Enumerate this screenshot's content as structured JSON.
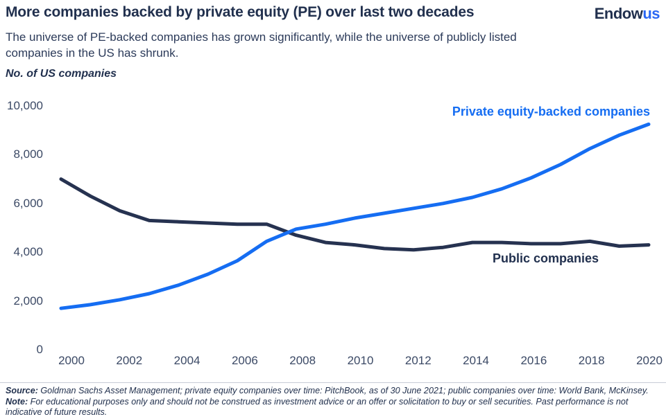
{
  "header": {
    "title": "More companies backed by private equity (PE) over last two decades",
    "logo": {
      "part1": "Endow",
      "part2": "us"
    }
  },
  "subtitle": {
    "line1": "The universe of PE-backed companies has grown significantly, while the universe of publicly listed",
    "line2": "companies in the US has shrunk."
  },
  "axis_unit_label": "No. of US companies",
  "chart_data": {
    "type": "line",
    "x": [
      2000,
      2001,
      2002,
      2003,
      2004,
      2005,
      2006,
      2007,
      2008,
      2009,
      2010,
      2011,
      2012,
      2013,
      2014,
      2015,
      2016,
      2017,
      2018,
      2019,
      2020
    ],
    "series": [
      {
        "name": "Public companies",
        "color": "#263250",
        "values": [
          7000,
          6300,
          5700,
          5300,
          5250,
          5200,
          5150,
          5150,
          4700,
          4400,
          4300,
          4150,
          4100,
          4200,
          4400,
          4400,
          4350,
          4350,
          4450,
          4250,
          4300
        ]
      },
      {
        "name": "Private equity-backed companies",
        "color": "#156DF2",
        "values": [
          1700,
          1850,
          2050,
          2300,
          2650,
          3100,
          3650,
          4450,
          4950,
          5150,
          5400,
          5600,
          5800,
          6000,
          6250,
          6600,
          7050,
          7600,
          8250,
          8800,
          9250
        ]
      }
    ],
    "title": "More companies backed by private equity (PE) over last two decades",
    "xlabel": "",
    "ylabel": "No. of US companies",
    "ylim": [
      0,
      10000
    ],
    "yticks": [
      0,
      2000,
      4000,
      6000,
      8000,
      10000
    ],
    "ytick_labels": [
      "0",
      "2,000",
      "4,000",
      "6,000",
      "8,000",
      "10,000"
    ],
    "xticks": [
      2000,
      2002,
      2004,
      2006,
      2008,
      2010,
      2012,
      2014,
      2016,
      2018,
      2020
    ],
    "grid": false,
    "legend_position": "inline-labels"
  },
  "series_labels": {
    "pe": "Private equity-backed companies",
    "public": "Public companies"
  },
  "footer": {
    "source_label": "Source:",
    "source_text": " Goldman Sachs Asset Management; private equity companies over time: PitchBook, as of 30 June 2021; public companies over time: World Bank, McKinsey. ",
    "note_label": "Note:",
    "note_text": " For educational purposes only and should not be construed as investment advice or an offer or solicitation to buy or sell securities. Past performance is not indicative of future results."
  },
  "colors": {
    "navy_text": "#21304E",
    "brand_blue": "#2A67F4",
    "line_blue": "#156DF2",
    "line_navy": "#263250",
    "tick_text": "#3B4965",
    "separator": "#C7CCD6",
    "background": "#FFFFFF"
  }
}
